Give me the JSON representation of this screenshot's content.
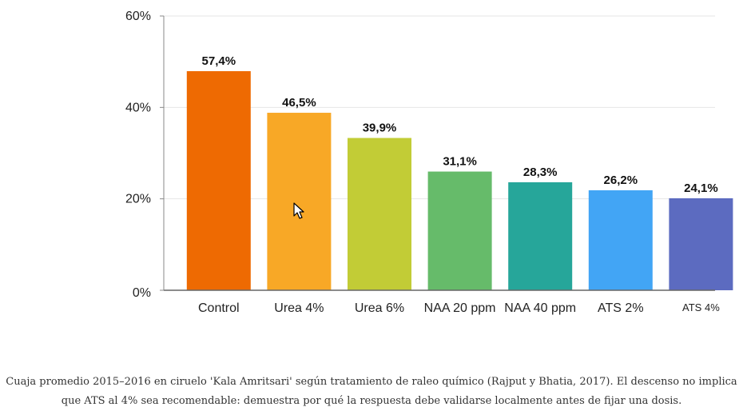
{
  "chart_data": {
    "type": "bar",
    "categories": [
      "Control",
      "Urea 4%",
      "Urea 6%",
      "NAA 20 ppm",
      "NAA 40 ppm",
      "ATS 2%",
      "ATS 4%"
    ],
    "values": [
      57.4,
      46.5,
      39.9,
      31.1,
      28.3,
      26.2,
      24.1
    ],
    "data_labels": [
      "57,4%",
      "46,5%",
      "39,9%",
      "31,1%",
      "28,3%",
      "26,2%",
      "24,1%"
    ],
    "colors": [
      "#ee6a02",
      "#f8a826",
      "#c2cc36",
      "#66bb6a",
      "#26a69a",
      "#42a5f5",
      "#5c6bc0"
    ],
    "ylim": [
      0,
      60
    ],
    "yticks": [
      0,
      20,
      40,
      60
    ],
    "ytick_labels": [
      "0%",
      "20%",
      "40%",
      "60%"
    ],
    "grid": true,
    "legend": "none"
  },
  "caption": "Cuaja promedio 2015–2016 en ciruelo 'Kala Amritsari' según tratamiento de raleo químico (Rajput y Bhatia, 2017). El descenso no implica que ATS al 4% sea recomendable: demuestra por qué la respuesta debe validarse localmente antes de fijar una dosis."
}
